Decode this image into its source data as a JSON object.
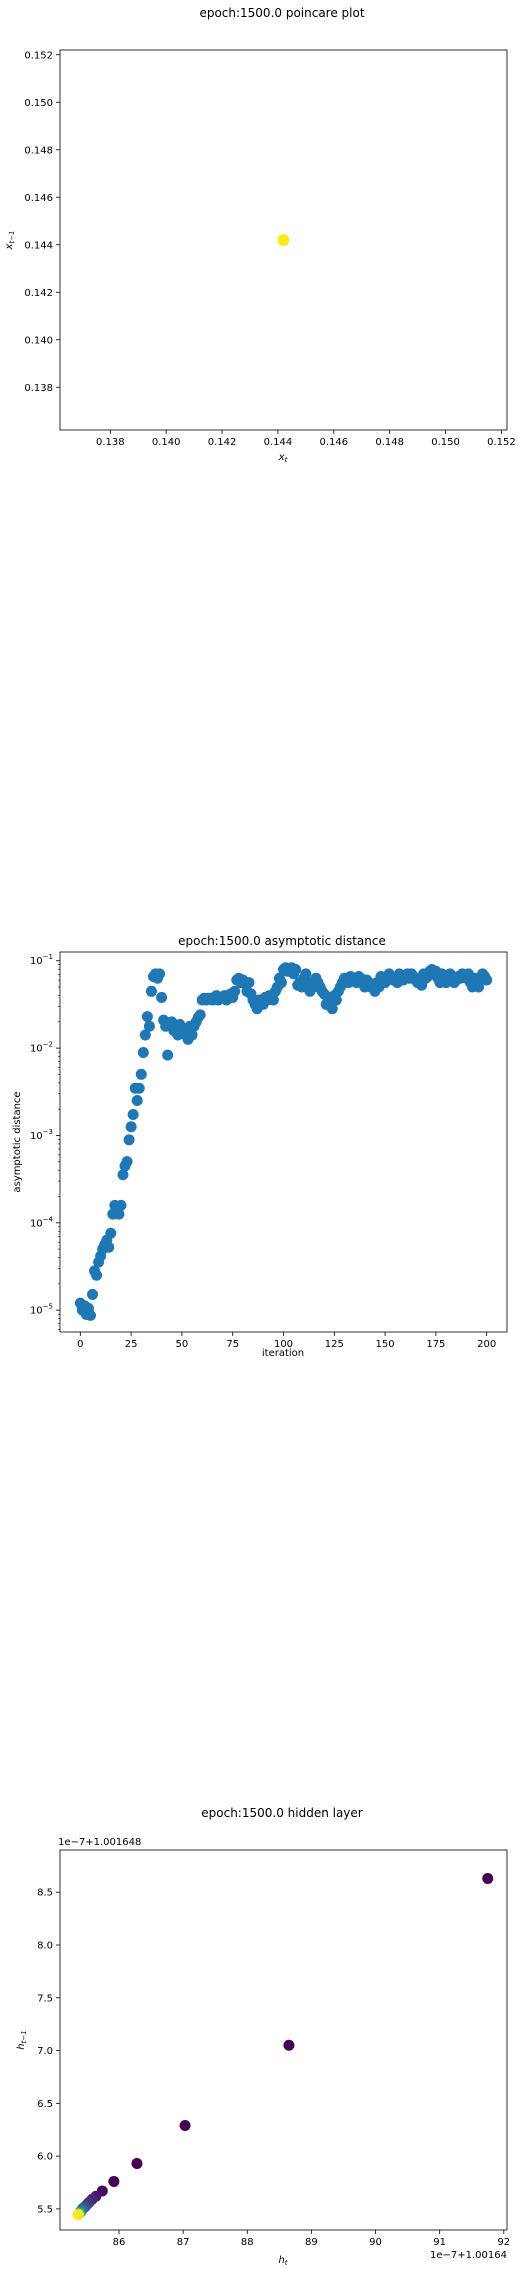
{
  "chart_data": [
    {
      "type": "scatter",
      "title": "epoch:1500.0 poincare plot",
      "xlabel": "x_t",
      "ylabel": "x_{t-1}",
      "xlim": [
        0.1362,
        0.1522
      ],
      "ylim": [
        0.1362,
        0.1522
      ],
      "xticks": [
        "0.138",
        "0.140",
        "0.142",
        "0.144",
        "0.146",
        "0.148",
        "0.150",
        "0.152"
      ],
      "yticks": [
        "0.138",
        "0.140",
        "0.142",
        "0.144",
        "0.146",
        "0.148",
        "0.150",
        "0.152"
      ],
      "points": [
        {
          "x": 0.1442,
          "y": 0.1442
        }
      ],
      "point_color": "#fde725"
    },
    {
      "type": "scatter",
      "title": "epoch:1500.0 asymptotic distance",
      "xlabel": "iteration",
      "ylabel": "asymptotic distance",
      "yscale": "log",
      "xlim": [
        -10,
        210
      ],
      "ylim_log10": [
        -5.25,
        -0.9
      ],
      "xticks": [
        "0",
        "25",
        "50",
        "75",
        "100",
        "125",
        "150",
        "175",
        "200"
      ],
      "yticks": [
        "10^-5",
        "10^-4",
        "10^-3",
        "10^-2",
        "10^-1"
      ],
      "point_color": "#1f77b4",
      "x": [
        0,
        1,
        2,
        3,
        4,
        5,
        6,
        7,
        8,
        9,
        10,
        11,
        12,
        13,
        14,
        15,
        16,
        17,
        18,
        19,
        20,
        21,
        22,
        23,
        24,
        25,
        26,
        27,
        28,
        29,
        30,
        31,
        32,
        33,
        34,
        35,
        36,
        37,
        38,
        39,
        40,
        41,
        42,
        43,
        44,
        45,
        46,
        47,
        48,
        49,
        50,
        51,
        52,
        53,
        54,
        55,
        56,
        57,
        58,
        59,
        60,
        61,
        62,
        63,
        64,
        65,
        66,
        67,
        68,
        69,
        70,
        71,
        72,
        73,
        74,
        75,
        76,
        77,
        78,
        79,
        80,
        81,
        82,
        83,
        84,
        85,
        86,
        87,
        88,
        89,
        90,
        91,
        92,
        93,
        94,
        95,
        96,
        97,
        98,
        99,
        100,
        101,
        102,
        103,
        104,
        105,
        106,
        107,
        108,
        109,
        110,
        111,
        112,
        113,
        114,
        115,
        116,
        117,
        118,
        119,
        120,
        121,
        122,
        123,
        124,
        125,
        126,
        127,
        128,
        129,
        130,
        131,
        132,
        133,
        134,
        135,
        136,
        137,
        138,
        139,
        140,
        141,
        142,
        143,
        144,
        145,
        146,
        147,
        148,
        149,
        150,
        151,
        152,
        153,
        154,
        155,
        156,
        157,
        158,
        159,
        160,
        161,
        162,
        163,
        164,
        165,
        166,
        167,
        168,
        169,
        170,
        171,
        172,
        173,
        174,
        175,
        176,
        177,
        178,
        179,
        180,
        181,
        182,
        183,
        184,
        185,
        186,
        187,
        188,
        189,
        190,
        191,
        192,
        193,
        194,
        195,
        196,
        197,
        198,
        199,
        200
      ],
      "log10_y": [
        -4.92,
        -5.0,
        -4.95,
        -5.05,
        -4.98,
        -5.06,
        -4.82,
        -4.55,
        -4.6,
        -4.45,
        -4.38,
        -4.3,
        -4.25,
        -4.2,
        -4.28,
        -4.12,
        -3.9,
        -3.8,
        -3.82,
        -3.9,
        -3.8,
        -3.45,
        -3.35,
        -3.3,
        -3.05,
        -2.9,
        -2.76,
        -2.46,
        -2.6,
        -2.46,
        -2.3,
        -2.05,
        -1.85,
        -1.64,
        -1.75,
        -1.35,
        -1.18,
        -1.15,
        -1.2,
        -1.15,
        -1.42,
        -1.68,
        -1.75,
        -2.08,
        -1.72,
        -1.7,
        -1.8,
        -1.75,
        -1.85,
        -1.73,
        -1.8,
        -1.78,
        -1.85,
        -1.9,
        -1.75,
        -1.85,
        -1.75,
        -1.7,
        -1.65,
        -1.62,
        -1.45,
        -1.43,
        -1.45,
        -1.43,
        -1.43,
        -1.45,
        -1.42,
        -1.4,
        -1.45,
        -1.42,
        -1.43,
        -1.4,
        -1.45,
        -1.4,
        -1.38,
        -1.42,
        -1.35,
        -1.22,
        -1.2,
        -1.25,
        -1.22,
        -1.26,
        -1.35,
        -1.25,
        -1.38,
        -1.45,
        -1.5,
        -1.55,
        -1.45,
        -1.48,
        -1.5,
        -1.42,
        -1.45,
        -1.4,
        -1.43,
        -1.45,
        -1.35,
        -1.3,
        -1.2,
        -1.25,
        -1.1,
        -1.08,
        -1.12,
        -1.1,
        -1.08,
        -1.15,
        -1.1,
        -1.28,
        -1.25,
        -1.3,
        -1.2,
        -1.15,
        -1.3,
        -1.35,
        -1.25,
        -1.3,
        -1.2,
        -1.25,
        -1.3,
        -1.35,
        -1.38,
        -1.5,
        -1.45,
        -1.42,
        -1.55,
        -1.4,
        -1.45,
        -1.35,
        -1.3,
        -1.25,
        -1.2,
        -1.2,
        -1.25,
        -1.18,
        -1.22,
        -1.2,
        -1.25,
        -1.18,
        -1.2,
        -1.25,
        -1.3,
        -1.22,
        -1.25,
        -1.3,
        -1.28,
        -1.35,
        -1.25,
        -1.3,
        -1.18,
        -1.22,
        -1.25,
        -1.2,
        -1.15,
        -1.18,
        -1.22,
        -1.2,
        -1.25,
        -1.15,
        -1.2,
        -1.22,
        -1.18,
        -1.15,
        -1.2,
        -1.15,
        -1.18,
        -1.22,
        -1.25,
        -1.2,
        -1.28,
        -1.15,
        -1.2,
        -1.18,
        -1.12,
        -1.1,
        -1.15,
        -1.12,
        -1.2,
        -1.25,
        -1.15,
        -1.2,
        -1.25,
        -1.18,
        -1.15,
        -1.2,
        -1.25,
        -1.22,
        -1.18,
        -1.2,
        -1.15,
        -1.18,
        -1.2,
        -1.15,
        -1.25,
        -1.3,
        -1.2,
        -1.25,
        -1.3,
        -1.2,
        -1.15,
        -1.18,
        -1.22,
        -1.18,
        -1.2
      ]
    },
    {
      "type": "scatter",
      "title": "epoch:1500.0 hidden layer",
      "xlabel": "h_t",
      "ylabel": "h_{t-1}",
      "xlim": [
        85.08,
        92.05
      ],
      "ylim": [
        5.3,
        8.9
      ],
      "xticks": [
        "86",
        "87",
        "88",
        "89",
        "90",
        "91",
        "92"
      ],
      "yticks": [
        "5.5",
        "6.0",
        "6.5",
        "7.0",
        "7.5",
        "8.0",
        "8.5"
      ],
      "x_offset_text": "1e−7+1.00164",
      "y_offset_text": "1e−7+1.001648",
      "color_range": [
        "#440154",
        "#fde725"
      ],
      "points": [
        {
          "x": 91.75,
          "y": 8.63,
          "color": "#440154"
        },
        {
          "x": 88.65,
          "y": 7.05,
          "color": "#440154"
        },
        {
          "x": 87.03,
          "y": 6.29,
          "color": "#440154"
        },
        {
          "x": 86.28,
          "y": 5.93,
          "color": "#440154"
        },
        {
          "x": 85.92,
          "y": 5.76,
          "color": "#440154"
        },
        {
          "x": 85.74,
          "y": 5.67,
          "color": "#450c5e"
        },
        {
          "x": 85.64,
          "y": 5.62,
          "color": "#46186b"
        },
        {
          "x": 85.58,
          "y": 5.59,
          "color": "#482475"
        },
        {
          "x": 85.53,
          "y": 5.56,
          "color": "#472f7d"
        },
        {
          "x": 85.5,
          "y": 5.54,
          "color": "#443a83"
        },
        {
          "x": 85.47,
          "y": 5.52,
          "color": "#404688"
        },
        {
          "x": 85.45,
          "y": 5.51,
          "color": "#3b528b"
        },
        {
          "x": 85.43,
          "y": 5.5,
          "color": "#355f8d"
        },
        {
          "x": 85.42,
          "y": 5.49,
          "color": "#2f6b8e"
        },
        {
          "x": 85.41,
          "y": 5.48,
          "color": "#2a788e"
        },
        {
          "x": 85.4,
          "y": 5.47,
          "color": "#24868e"
        },
        {
          "x": 85.39,
          "y": 5.465,
          "color": "#1f928c"
        },
        {
          "x": 85.385,
          "y": 5.46,
          "color": "#1fa188"
        },
        {
          "x": 85.38,
          "y": 5.455,
          "color": "#2ab07f"
        },
        {
          "x": 85.375,
          "y": 5.452,
          "color": "#44bf70"
        },
        {
          "x": 85.37,
          "y": 5.45,
          "color": "#6ccd5a"
        },
        {
          "x": 85.368,
          "y": 5.448,
          "color": "#9bd93c"
        },
        {
          "x": 85.365,
          "y": 5.446,
          "color": "#cae11f"
        },
        {
          "x": 85.362,
          "y": 5.445,
          "color": "#fde725"
        }
      ]
    }
  ]
}
